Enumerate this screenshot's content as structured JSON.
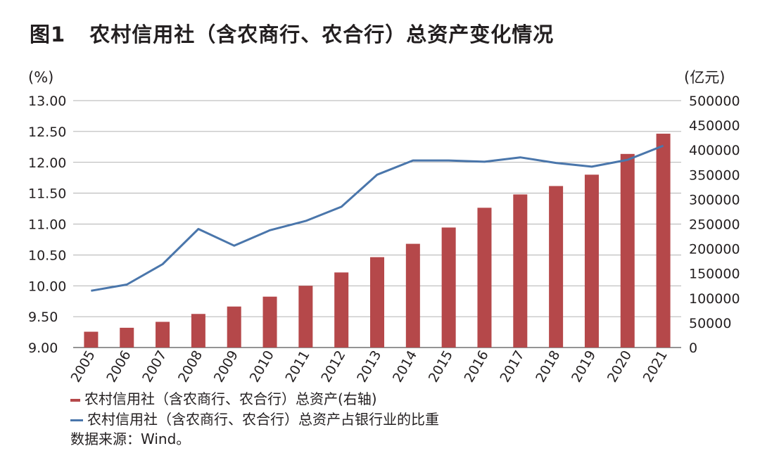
{
  "title_prefix": "图1",
  "title": "农村信用社（含农商行、农合行）总资产变化情况",
  "source": "数据来源：Wind。",
  "chart_data": {
    "type": "bar",
    "x": [
      "2005",
      "2006",
      "2007",
      "2008",
      "2009",
      "2010",
      "2011",
      "2012",
      "2013",
      "2014",
      "2015",
      "2016",
      "2017",
      "2018",
      "2019",
      "2020",
      "2021"
    ],
    "left_unit": "(%)",
    "right_unit": "(亿元)",
    "left_ticks": [
      "9.00",
      "9.50",
      "10.00",
      "10.50",
      "11.00",
      "11.50",
      "12.00",
      "12.50",
      "13.00"
    ],
    "right_ticks": [
      "0",
      "50000",
      "100000",
      "150000",
      "200000",
      "250000",
      "300000",
      "350000",
      "400000",
      "450000",
      "500000"
    ],
    "ylim_left": [
      9.0,
      13.0
    ],
    "ylim_right": [
      0,
      500000
    ],
    "grid": true,
    "legend_position": "bottom-left",
    "series": [
      {
        "name": "农村信用社（含农商行、农合行）总资产(右轴)",
        "type": "bar",
        "axis": "right",
        "color": "#b5484a",
        "values": [
          32000,
          40000,
          52000,
          68000,
          83000,
          103000,
          125000,
          152000,
          183000,
          210000,
          243000,
          283000,
          310000,
          327000,
          350000,
          392000,
          433000
        ]
      },
      {
        "name": "农村信用社（含农商行、农合行）总资产占银行业的比重",
        "type": "line",
        "axis": "left",
        "color": "#4a76ab",
        "values": [
          9.92,
          10.02,
          10.35,
          10.92,
          10.65,
          10.9,
          11.05,
          11.28,
          11.8,
          12.03,
          12.03,
          12.01,
          12.08,
          11.99,
          11.93,
          12.04,
          12.27
        ]
      }
    ]
  }
}
